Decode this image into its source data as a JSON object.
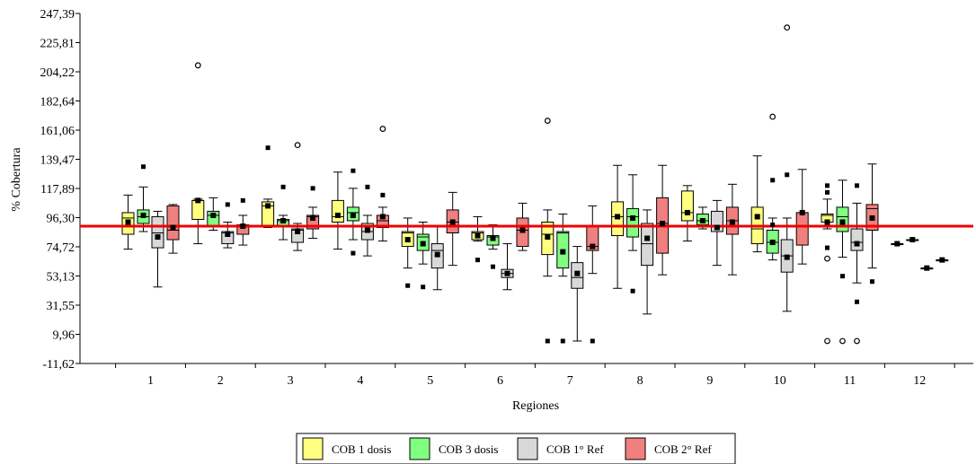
{
  "chart_data": {
    "type": "box",
    "title": "",
    "xlabel": "Regiones",
    "ylabel": "% Cobertura",
    "ylim": [
      -11.62,
      247.39
    ],
    "y_ticks": [
      -11.62,
      9.96,
      31.55,
      53.13,
      74.72,
      96.3,
      117.89,
      139.47,
      161.06,
      182.64,
      204.22,
      225.81,
      247.39
    ],
    "y_tick_labels": [
      "-11,62",
      "9,96",
      "31,55",
      "53,13",
      "74,72",
      "96,30",
      "117,89",
      "139,47",
      "161,06",
      "182,64",
      "204,22",
      "225,81",
      "247,39"
    ],
    "categories": [
      "1",
      "2",
      "3",
      "4",
      "5",
      "6",
      "7",
      "8",
      "9",
      "10",
      "11",
      "12"
    ],
    "reference_line": {
      "y": 90,
      "color": "#ee0000"
    },
    "legend_position": "bottom",
    "series": [
      {
        "name": "COB 1 dosis",
        "color": "#ffff80",
        "boxes": [
          {
            "min": 73,
            "q1": 84,
            "median": 96,
            "q3": 100,
            "max": 113,
            "mean": 93,
            "outliers": []
          },
          {
            "min": 77,
            "q1": 95,
            "median": 109,
            "q3": 109,
            "max": 110,
            "mean": 109,
            "outliers": [
              {
                "v": 209,
                "hollow": true
              }
            ]
          },
          {
            "min": 89,
            "q1": 90,
            "median": 105,
            "q3": 108,
            "max": 110,
            "mean": 105,
            "outliers": [
              {
                "v": 148,
                "hollow": false
              }
            ]
          },
          {
            "min": 73,
            "q1": 93,
            "median": 97,
            "q3": 109,
            "max": 130,
            "mean": 98,
            "outliers": []
          },
          {
            "min": 59,
            "q1": 75,
            "median": 85,
            "q3": 86,
            "max": 96,
            "mean": 80,
            "outliers": [
              {
                "v": 46,
                "hollow": false
              }
            ]
          },
          {
            "min": 79,
            "q1": 80,
            "median": 85,
            "q3": 86,
            "max": 97,
            "mean": 83,
            "outliers": [
              {
                "v": 65,
                "hollow": false
              }
            ]
          },
          {
            "min": 53,
            "q1": 69,
            "median": 84,
            "q3": 93,
            "max": 102,
            "mean": 82,
            "outliers": [
              {
                "v": 5,
                "hollow": false
              },
              {
                "v": 168,
                "hollow": true
              }
            ]
          },
          {
            "min": 44,
            "q1": 83,
            "median": 97,
            "q3": 108,
            "max": 135,
            "mean": 97,
            "outliers": []
          },
          {
            "min": 79,
            "q1": 94,
            "median": 100,
            "q3": 116,
            "max": 120,
            "mean": 100,
            "outliers": []
          },
          {
            "min": 71,
            "q1": 77,
            "median": 88,
            "q3": 104,
            "max": 142,
            "mean": 97,
            "outliers": []
          },
          {
            "min": 88,
            "q1": 93,
            "median": 98,
            "q3": 99,
            "max": 110,
            "mean": 93,
            "outliers": [
              {
                "v": 74,
                "hollow": false
              },
              {
                "v": 66,
                "hollow": true
              },
              {
                "v": 5,
                "hollow": true
              },
              {
                "v": 115,
                "hollow": false
              },
              {
                "v": 120,
                "hollow": false
              }
            ]
          },
          {
            "min": 77,
            "q1": 77,
            "median": 77,
            "q3": 77,
            "max": 77,
            "mean": 77,
            "outliers": []
          }
        ]
      },
      {
        "name": "COB 3 dosis",
        "color": "#80ff80",
        "boxes": [
          {
            "min": 86,
            "q1": 92,
            "median": 97,
            "q3": 102,
            "max": 119,
            "mean": 98,
            "outliers": [
              {
                "v": 134,
                "hollow": false
              }
            ]
          },
          {
            "min": 87,
            "q1": 90,
            "median": 98,
            "q3": 101,
            "max": 111,
            "mean": 98,
            "outliers": []
          },
          {
            "min": 80,
            "q1": 90,
            "median": 94,
            "q3": 95,
            "max": 98,
            "mean": 94,
            "outliers": [
              {
                "v": 119,
                "hollow": false
              }
            ]
          },
          {
            "min": 80,
            "q1": 94,
            "median": 100,
            "q3": 104,
            "max": 118,
            "mean": 98,
            "outliers": [
              {
                "v": 131,
                "hollow": false
              },
              {
                "v": 70,
                "hollow": false
              }
            ]
          },
          {
            "min": 62,
            "q1": 72,
            "median": 82,
            "q3": 84,
            "max": 93,
            "mean": 77,
            "outliers": [
              {
                "v": 45,
                "hollow": false
              }
            ]
          },
          {
            "min": 73,
            "q1": 76,
            "median": 82,
            "q3": 83,
            "max": 91,
            "mean": 81,
            "outliers": [
              {
                "v": 60,
                "hollow": false
              }
            ]
          },
          {
            "min": 53,
            "q1": 59,
            "median": 85,
            "q3": 86,
            "max": 99,
            "mean": 71,
            "outliers": [
              {
                "v": 5,
                "hollow": false
              }
            ]
          },
          {
            "min": 72,
            "q1": 82,
            "median": 97,
            "q3": 103,
            "max": 128,
            "mean": 96,
            "outliers": [
              {
                "v": 42,
                "hollow": false
              }
            ]
          },
          {
            "min": 88,
            "q1": 91,
            "median": 94,
            "q3": 99,
            "max": 104,
            "mean": 94,
            "outliers": []
          },
          {
            "min": 65,
            "q1": 70,
            "median": 78,
            "q3": 87,
            "max": 96,
            "mean": 78,
            "outliers": [
              {
                "v": 124,
                "hollow": false
              },
              {
                "v": 91,
                "hollow": false
              },
              {
                "v": 171,
                "hollow": true
              }
            ]
          },
          {
            "min": 67,
            "q1": 86,
            "median": 97,
            "q3": 104,
            "max": 124,
            "mean": 93,
            "outliers": [
              {
                "v": 53,
                "hollow": false
              },
              {
                "v": 5,
                "hollow": true
              }
            ]
          },
          {
            "min": 80,
            "q1": 80,
            "median": 80,
            "q3": 80,
            "max": 80,
            "mean": 80,
            "outliers": []
          }
        ]
      },
      {
        "name": "COB 1° Ref",
        "color": "#d8d8d8",
        "boxes": [
          {
            "min": 45,
            "q1": 74,
            "median": 85,
            "q3": 97,
            "max": 101,
            "mean": 82,
            "outliers": []
          },
          {
            "min": 74,
            "q1": 77,
            "median": 85,
            "q3": 86,
            "max": 93,
            "mean": 84,
            "outliers": [
              {
                "v": 106,
                "hollow": false
              }
            ]
          },
          {
            "min": 72,
            "q1": 78,
            "median": 87,
            "q3": 88,
            "max": 92,
            "mean": 86,
            "outliers": [
              {
                "v": 150,
                "hollow": true
              }
            ]
          },
          {
            "min": 68,
            "q1": 80,
            "median": 86,
            "q3": 92,
            "max": 98,
            "mean": 87,
            "outliers": [
              {
                "v": 119,
                "hollow": false
              }
            ]
          },
          {
            "min": 43,
            "q1": 59,
            "median": 72,
            "q3": 77,
            "max": 90,
            "mean": 69,
            "outliers": []
          },
          {
            "min": 43,
            "q1": 52,
            "median": 55,
            "q3": 58,
            "max": 77,
            "mean": 55,
            "outliers": []
          },
          {
            "min": 5,
            "q1": 44,
            "median": 52,
            "q3": 63,
            "max": 75,
            "mean": 55,
            "outliers": []
          },
          {
            "min": 25,
            "q1": 61,
            "median": 77,
            "q3": 92,
            "max": 102,
            "mean": 81,
            "outliers": []
          },
          {
            "min": 61,
            "q1": 86,
            "median": 90,
            "q3": 101,
            "max": 109,
            "mean": 89,
            "outliers": []
          },
          {
            "min": 27,
            "q1": 56,
            "median": 68,
            "q3": 80,
            "max": 96,
            "mean": 67,
            "outliers": [
              {
                "v": 128,
                "hollow": false
              },
              {
                "v": 237,
                "hollow": true
              }
            ]
          },
          {
            "min": 48,
            "q1": 72,
            "median": 78,
            "q3": 88,
            "max": 107,
            "mean": 77,
            "outliers": [
              {
                "v": 34,
                "hollow": false
              },
              {
                "v": 120,
                "hollow": false
              },
              {
                "v": 5,
                "hollow": true
              }
            ]
          },
          {
            "min": 59,
            "q1": 59,
            "median": 59,
            "q3": 59,
            "max": 59,
            "mean": 59,
            "outliers": []
          }
        ]
      },
      {
        "name": "COB 2° Ref",
        "color": "#f08080",
        "boxes": [
          {
            "min": 70,
            "q1": 80,
            "median": 87,
            "q3": 105,
            "max": 106,
            "mean": 89,
            "outliers": []
          },
          {
            "min": 76,
            "q1": 84,
            "median": 90,
            "q3": 91,
            "max": 98,
            "mean": 90,
            "outliers": [
              {
                "v": 109,
                "hollow": false
              }
            ]
          },
          {
            "min": 81,
            "q1": 88,
            "median": 97,
            "q3": 98,
            "max": 104,
            "mean": 96,
            "outliers": [
              {
                "v": 118,
                "hollow": false
              }
            ]
          },
          {
            "min": 79,
            "q1": 89,
            "median": 94,
            "q3": 98,
            "max": 104,
            "mean": 97,
            "outliers": [
              {
                "v": 113,
                "hollow": false
              },
              {
                "v": 162,
                "hollow": true
              }
            ]
          },
          {
            "min": 61,
            "q1": 85,
            "median": 93,
            "q3": 102,
            "max": 115,
            "mean": 93,
            "outliers": []
          },
          {
            "min": 72,
            "q1": 75,
            "median": 87,
            "q3": 96,
            "max": 107,
            "mean": 87,
            "outliers": []
          },
          {
            "min": 55,
            "q1": 72,
            "median": 75,
            "q3": 90,
            "max": 105,
            "mean": 75,
            "outliers": [
              {
                "v": 5,
                "hollow": false
              }
            ]
          },
          {
            "min": 54,
            "q1": 70,
            "median": 92,
            "q3": 111,
            "max": 135,
            "mean": 92,
            "outliers": []
          },
          {
            "min": 54,
            "q1": 84,
            "median": 94,
            "q3": 104,
            "max": 121,
            "mean": 93,
            "outliers": []
          },
          {
            "min": 62,
            "q1": 76,
            "median": 100,
            "q3": 100,
            "max": 132,
            "mean": 100,
            "outliers": []
          },
          {
            "min": 59,
            "q1": 87,
            "median": 103,
            "q3": 106,
            "max": 136,
            "mean": 96,
            "outliers": [
              {
                "v": 49,
                "hollow": false
              }
            ]
          },
          {
            "min": 65,
            "q1": 65,
            "median": 65,
            "q3": 65,
            "max": 65,
            "mean": 65,
            "outliers": []
          }
        ]
      }
    ]
  }
}
